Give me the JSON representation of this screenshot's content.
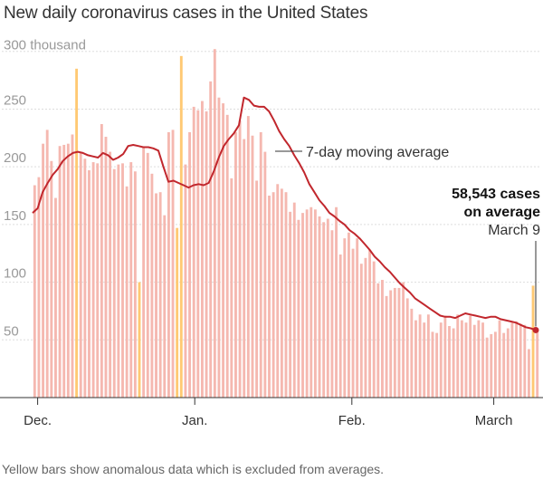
{
  "chart_data": {
    "type": "bar",
    "title": "New daily coronavirus cases in the United States",
    "y_unit_label": "300 thousand",
    "ylim": [
      0,
      310
    ],
    "y_ticks": [
      50,
      100,
      150,
      200,
      250,
      300
    ],
    "y_tick_labels": [
      "50",
      "100",
      "150",
      "200",
      "250"
    ],
    "x_ticks": [
      {
        "label": "Dec.",
        "day": 1
      },
      {
        "label": "Jan.",
        "day": 32
      },
      {
        "label": "Feb.",
        "day": 63
      },
      {
        "label": "March",
        "day": 91
      }
    ],
    "x_range_days": [
      0,
      100
    ],
    "grid": true,
    "series": [
      {
        "kind": "bars",
        "color": "#f5b8b0",
        "values": [
          184,
          191,
          220,
          232,
          205,
          173,
          218,
          219,
          220,
          228,
          285,
          212,
          207,
          197,
          204,
          203,
          237,
          226,
          213,
          198,
          202,
          203,
          183,
          204,
          196,
          100,
          217,
          212,
          194,
          177,
          178,
          158,
          230,
          232,
          147,
          296,
          202,
          230,
          252,
          249,
          257,
          248,
          274,
          302,
          260,
          255,
          245,
          190,
          230,
          240,
          224,
          244,
          227,
          188,
          230,
          213,
          175,
          178,
          185,
          181,
          178,
          161,
          169,
          154,
          160,
          163,
          165,
          163,
          157,
          152,
          155,
          145,
          165,
          124,
          138,
          143,
          129,
          138,
          116,
          121,
          128,
          118,
          99,
          102,
          88,
          93,
          95,
          95,
          100,
          86,
          77,
          67,
          72,
          65,
          72,
          57,
          56,
          65,
          71,
          62,
          60,
          72,
          67,
          65,
          71,
          63,
          67,
          65,
          52,
          55,
          57,
          67,
          56,
          60,
          65,
          66,
          64,
          63,
          42,
          97,
          60
        ],
        "special": {
          "10": "#ffc973",
          "25": "#ffc973",
          "34": "#ffc973",
          "35": "#ffc973",
          "119": "#ffc973"
        }
      },
      {
        "name": "7-day moving average",
        "kind": "line",
        "color": "#c1272d",
        "values": [
          160,
          164,
          178,
          186,
          193,
          198,
          205,
          209,
          212,
          213,
          212,
          210,
          209,
          208,
          212,
          210,
          206,
          208,
          211,
          218,
          219,
          218,
          217,
          217,
          216,
          214,
          200,
          187,
          188,
          186,
          184,
          182,
          184,
          185,
          184,
          186,
          196,
          208,
          218,
          224,
          229,
          236,
          260,
          258,
          253,
          252,
          252,
          248,
          240,
          231,
          224,
          218,
          210,
          203,
          195,
          185,
          178,
          171,
          166,
          160,
          157,
          153,
          150,
          145,
          142,
          138,
          133,
          128,
          122,
          118,
          113,
          109,
          104,
          99,
          95,
          91,
          86,
          83,
          80,
          77,
          74,
          71,
          70,
          70,
          69,
          71,
          73,
          72,
          71,
          70,
          69,
          70,
          70,
          68,
          67,
          66,
          65,
          63,
          61,
          60,
          58.5
        ]
      }
    ],
    "annotations": {
      "line_label": "7-day moving average",
      "callout_value": "58,543 cases",
      "callout_value_2": "on average",
      "callout_date": "March 9"
    },
    "footnote": "Yellow bars show anomalous data which is excluded from averages."
  }
}
